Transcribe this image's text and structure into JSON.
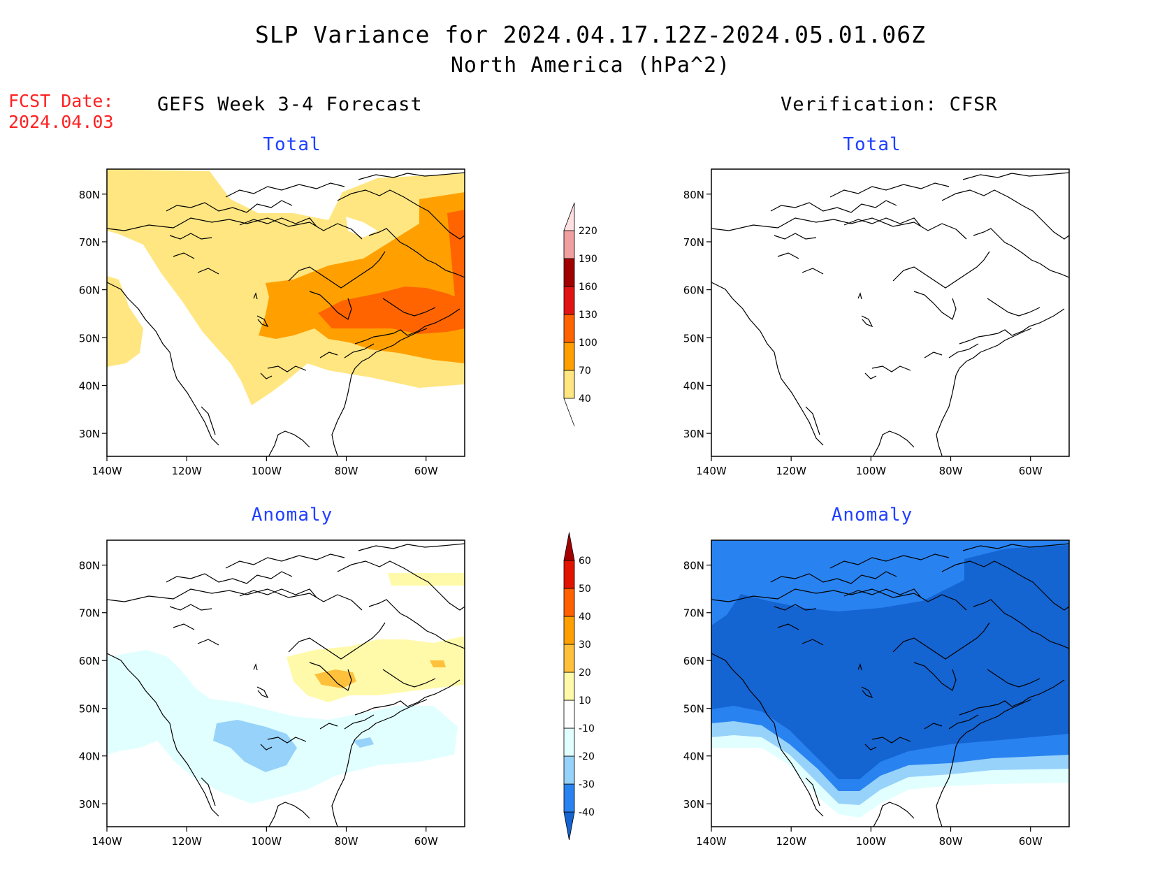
{
  "title": "SLP Variance for 2024.04.17.12Z-2024.05.01.06Z",
  "subtitle": "North America (hPa^2)",
  "fcst_label": "FCST Date:",
  "fcst_date": "2024.04.03",
  "left_header": "GEFS Week 3-4 Forecast",
  "right_header": "Verification: CFSR",
  "panels": {
    "top_left": "Total",
    "top_right": "Total",
    "bottom_left": "Anomaly",
    "bottom_right": "Anomaly"
  },
  "lat_labels": [
    "80N",
    "70N",
    "60N",
    "50N",
    "40N",
    "30N"
  ],
  "lon_labels": [
    "140W",
    "120W",
    "100W",
    "80W",
    "60W"
  ],
  "total_colorbar": {
    "labels": [
      "40",
      "70",
      "100",
      "130",
      "160",
      "190",
      "220"
    ],
    "colors": [
      "#ffe680",
      "#ffa000",
      "#ff6400",
      "#e01414",
      "#a00000",
      "#f0a0a0",
      "#ffe0e0"
    ]
  },
  "anomaly_colorbar": {
    "labels": [
      "-40",
      "-30",
      "-20",
      "-10",
      "10",
      "20",
      "30",
      "40",
      "50",
      "60"
    ],
    "colors": [
      "#1464d2",
      "#2882f0",
      "#96d2fa",
      "#e1ffff",
      "#ffffff",
      "#fffaaa",
      "#ffc03c",
      "#ffa000",
      "#ff6000",
      "#e11400",
      "#a50000"
    ]
  }
}
